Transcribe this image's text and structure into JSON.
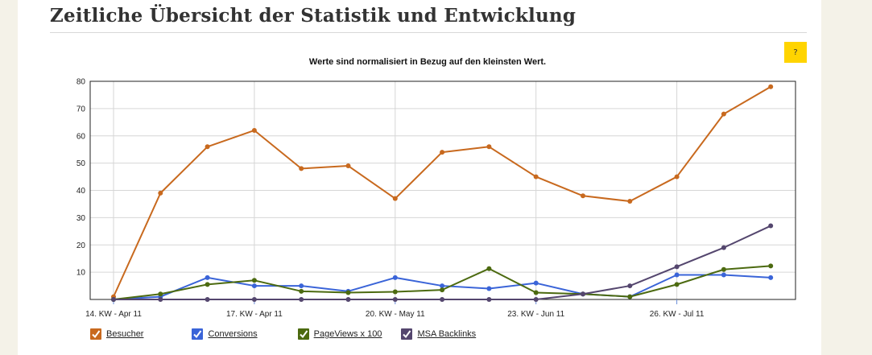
{
  "page": {
    "title": "Zeitliche Übersicht der Statistik und Entwicklung",
    "help_label": "?"
  },
  "chart_data": {
    "type": "line",
    "title": "Werte sind normalisiert in Bezug auf den kleinsten Wert.",
    "xlabel": "",
    "ylabel": "",
    "ylim": [
      0,
      80
    ],
    "yticks": [
      10,
      20,
      30,
      40,
      50,
      60,
      70,
      80
    ],
    "grid": true,
    "x_count": 15,
    "xtick_labels": [
      {
        "index": 0,
        "label": "14. KW - Apr 11"
      },
      {
        "index": 3,
        "label": "17. KW - Apr 11"
      },
      {
        "index": 6,
        "label": "20. KW - May 11"
      },
      {
        "index": 9,
        "label": "23. KW - Jun 11"
      },
      {
        "index": 12,
        "label": "26. KW - Jul 11"
      }
    ],
    "legend_position": "bottom-left",
    "series": [
      {
        "name": "Besucher",
        "color": "#c8691e",
        "values": [
          1,
          39,
          56,
          62,
          48,
          49,
          37,
          54,
          56,
          45,
          38,
          36,
          45,
          68,
          78
        ]
      },
      {
        "name": "Conversions",
        "color": "#3a64d8",
        "values": [
          0,
          1,
          8,
          5,
          5,
          3,
          8,
          5,
          4,
          6,
          2,
          1,
          9,
          9,
          8
        ]
      },
      {
        "name": "PageViews x 100",
        "color": "#4c6a10",
        "values": [
          0,
          2,
          5.5,
          7,
          3,
          2.5,
          2.8,
          3.5,
          11.3,
          2.5,
          2,
          1,
          5.5,
          11,
          12.3
        ]
      },
      {
        "name": "MSA Backlinks",
        "color": "#54466e",
        "values": [
          0,
          0,
          0,
          0,
          0,
          0,
          0,
          0,
          0,
          0,
          2,
          5,
          12,
          19,
          27
        ]
      }
    ]
  }
}
